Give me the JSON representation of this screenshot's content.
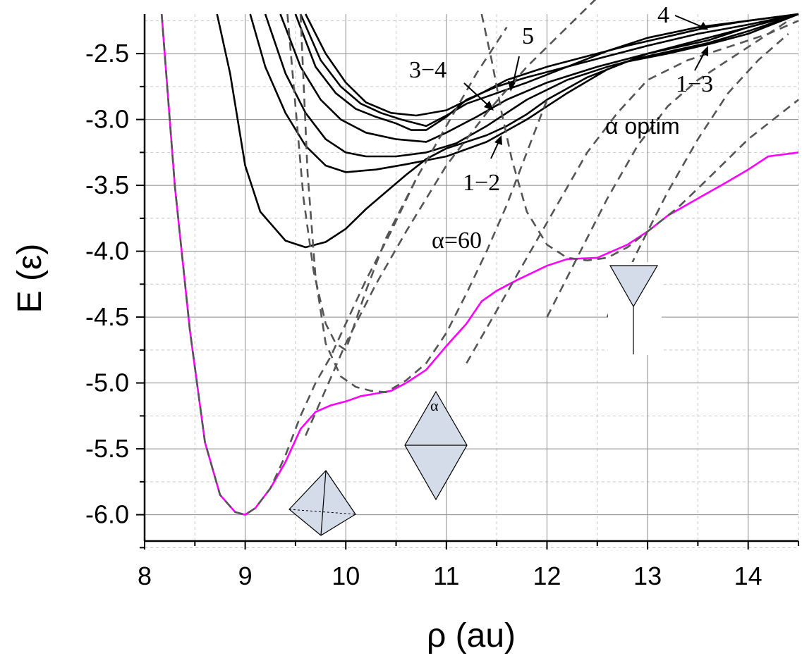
{
  "chart_data": {
    "type": "line",
    "xlabel": "ρ (au)",
    "ylabel": "E (ε)",
    "xlim": [
      8.0,
      14.5
    ],
    "ylim": [
      -6.2,
      -2.2
    ],
    "xticks": [
      8,
      9,
      10,
      11,
      12,
      13,
      14
    ],
    "xtick_labels": [
      "8",
      "9",
      "10",
      "11",
      "12",
      "13",
      "14"
    ],
    "yticks": [
      -2.5,
      -3.0,
      -3.5,
      -4.0,
      -4.5,
      -5.0,
      -5.5,
      -6.0
    ],
    "ytick_labels": [
      "-2.5",
      "-3.0",
      "-3.5",
      "-4.0",
      "-4.5",
      "-5.0",
      "-5.5",
      "-6.0"
    ],
    "grid": true,
    "annotations": {
      "a4": "4",
      "a5": "5",
      "a34": "3−4",
      "a13": "1−3",
      "a12": "1−2",
      "alpha_optim": "α optim",
      "alpha60": "α=60",
      "alpha_small": "α"
    },
    "colors": {
      "black": "#000000",
      "dashed": "#555555",
      "magenta": "#ff00ff",
      "shape_fill": "#d3dce8"
    },
    "series": [
      {
        "style": "magenta",
        "x": [
          8.17,
          8.3,
          8.45,
          8.6,
          8.75,
          8.9,
          9.0,
          9.1,
          9.25,
          9.4,
          9.55,
          9.7,
          9.85,
          10.0,
          10.15,
          10.3,
          10.45,
          10.6,
          10.8,
          11.0,
          11.2,
          11.35,
          11.5,
          11.7,
          12.0,
          12.2,
          12.5,
          12.8,
          13.0,
          13.2,
          13.5,
          13.8,
          14.0,
          14.2,
          14.5
        ],
        "y": [
          -2.2,
          -3.5,
          -4.6,
          -5.45,
          -5.85,
          -5.98,
          -6.0,
          -5.95,
          -5.8,
          -5.6,
          -5.35,
          -5.22,
          -5.17,
          -5.14,
          -5.1,
          -5.08,
          -5.06,
          -5.0,
          -4.9,
          -4.72,
          -4.55,
          -4.38,
          -4.3,
          -4.22,
          -4.11,
          -4.06,
          -4.05,
          -3.95,
          -3.85,
          -3.73,
          -3.6,
          -3.47,
          -3.38,
          -3.28,
          -3.25
        ]
      },
      {
        "style": "dashed",
        "x": [
          8.17,
          8.3,
          8.45,
          8.6,
          8.75,
          8.9,
          9.0,
          9.1,
          9.25,
          9.4,
          9.55,
          9.7,
          9.85,
          10.0,
          10.2,
          10.45,
          10.7
        ],
        "y": [
          -2.2,
          -3.5,
          -4.6,
          -5.45,
          -5.85,
          -5.98,
          -6.0,
          -5.95,
          -5.8,
          -5.55,
          -5.25,
          -5.0,
          -4.8,
          -4.55,
          -4.22,
          -3.85,
          -3.45
        ]
      },
      {
        "style": "dashed",
        "x": [
          9.55,
          9.62,
          9.7,
          9.8,
          9.95,
          10.1,
          10.25,
          10.4,
          10.6,
          10.8,
          11.0,
          11.2,
          11.4,
          11.6,
          11.8,
          12.0
        ],
        "y": [
          -2.2,
          -3.4,
          -4.2,
          -4.7,
          -4.95,
          -5.03,
          -5.06,
          -5.07,
          -4.98,
          -4.85,
          -4.62,
          -4.32,
          -4.0,
          -3.65,
          -3.25,
          -2.85
        ]
      },
      {
        "style": "dashed",
        "x": [
          9.42,
          9.5,
          9.58,
          9.68,
          9.8,
          9.9,
          10.0,
          10.2,
          10.4,
          10.7,
          11.0,
          11.3,
          11.6
        ],
        "y": [
          -2.2,
          -2.9,
          -3.6,
          -4.15,
          -4.55,
          -4.7,
          -4.75,
          -4.3,
          -3.9,
          -3.45,
          -3.05,
          -2.65,
          -2.3
        ]
      },
      {
        "style": "dashed",
        "x": [
          9.6,
          9.8,
          10.0,
          10.3,
          10.6,
          11.0,
          11.4,
          11.8,
          12.2,
          12.6
        ],
        "y": [
          -5.4,
          -5.05,
          -4.7,
          -4.25,
          -3.85,
          -3.35,
          -2.95,
          -2.6,
          -2.3,
          -2.0
        ]
      },
      {
        "style": "dashed",
        "x": [
          11.35,
          11.45,
          11.55,
          11.65,
          11.8,
          12.0,
          12.2,
          12.4,
          12.6,
          12.8,
          13.0,
          13.3,
          13.6,
          14.0,
          14.5
        ],
        "y": [
          -2.2,
          -2.55,
          -2.95,
          -3.3,
          -3.7,
          -3.95,
          -4.05,
          -4.07,
          -4.05,
          -3.97,
          -3.85,
          -3.67,
          -3.45,
          -3.15,
          -2.85
        ]
      },
      {
        "style": "dashed",
        "x": [
          11.2,
          11.5,
          11.8,
          12.1,
          12.4,
          12.7,
          13.0,
          13.4,
          13.8,
          14.2,
          14.5
        ],
        "y": [
          -4.85,
          -4.45,
          -4.05,
          -3.65,
          -3.25,
          -2.95,
          -2.7,
          -2.55,
          -2.45,
          -2.35,
          -2.25
        ]
      },
      {
        "style": "dashed",
        "x": [
          12.0,
          12.3,
          12.6,
          12.9,
          13.2,
          13.5,
          13.8,
          14.1,
          14.4
        ],
        "y": [
          -4.5,
          -4.05,
          -3.6,
          -3.2,
          -2.9,
          -2.7,
          -2.55,
          -2.4,
          -2.25
        ]
      },
      {
        "style": "dashed",
        "x": [
          12.6,
          12.9,
          13.2,
          13.5,
          13.8,
          14.1,
          14.4
        ],
        "y": [
          -4.5,
          -4.0,
          -3.55,
          -3.15,
          -2.8,
          -2.55,
          -2.35
        ]
      },
      {
        "style": "black",
        "x": [
          8.72,
          8.85,
          9.0,
          9.15,
          9.4,
          9.6,
          9.8,
          10.0,
          10.2,
          10.4,
          10.6,
          10.8,
          11.0,
          11.2,
          11.4,
          11.6,
          11.8,
          12.0,
          12.4,
          12.8,
          13.2,
          13.6,
          14.0,
          14.5
        ],
        "y": [
          -2.2,
          -2.65,
          -3.35,
          -3.7,
          -3.92,
          -3.97,
          -3.93,
          -3.83,
          -3.68,
          -3.55,
          -3.42,
          -3.3,
          -3.22,
          -3.17,
          -3.12,
          -3.05,
          -2.96,
          -2.85,
          -2.68,
          -2.56,
          -2.5,
          -2.43,
          -2.35,
          -2.2
        ]
      },
      {
        "style": "black",
        "x": [
          9.05,
          9.2,
          9.4,
          9.6,
          9.8,
          10.0,
          10.3,
          10.6,
          11.0,
          11.4,
          11.8,
          12.2,
          12.6,
          13.0,
          13.6,
          14.0,
          14.5
        ],
        "y": [
          -2.2,
          -2.6,
          -2.95,
          -3.2,
          -3.35,
          -3.4,
          -3.38,
          -3.34,
          -3.28,
          -3.17,
          -3.0,
          -2.8,
          -2.62,
          -2.5,
          -2.4,
          -2.3,
          -2.2
        ]
      },
      {
        "style": "black",
        "x": [
          9.2,
          9.4,
          9.6,
          9.8,
          10.0,
          10.2,
          10.5,
          10.8,
          11.1,
          11.4,
          11.8,
          12.2,
          12.6,
          13.0,
          13.6,
          14.0,
          14.5
        ],
        "y": [
          -2.2,
          -2.65,
          -2.95,
          -3.15,
          -3.25,
          -3.28,
          -3.28,
          -3.25,
          -3.18,
          -3.05,
          -2.85,
          -2.7,
          -2.6,
          -2.52,
          -2.42,
          -2.33,
          -2.2
        ]
      },
      {
        "style": "black",
        "x": [
          9.35,
          9.55,
          9.75,
          9.95,
          10.2,
          10.5,
          10.8,
          11.0,
          11.3,
          11.6,
          12.0,
          12.5,
          13.0,
          13.5,
          14.0,
          14.5
        ],
        "y": [
          -2.2,
          -2.6,
          -2.85,
          -3.0,
          -3.1,
          -3.15,
          -3.17,
          -3.1,
          -2.98,
          -2.85,
          -2.72,
          -2.6,
          -2.5,
          -2.4,
          -2.3,
          -2.2
        ]
      },
      {
        "style": "black",
        "x": [
          9.5,
          9.7,
          9.9,
          10.1,
          10.3,
          10.5,
          10.65,
          10.8,
          11.0,
          11.2,
          11.5,
          11.8,
          12.2,
          12.6,
          13.0,
          13.5,
          14.0,
          14.5
        ],
        "y": [
          -2.2,
          -2.6,
          -2.8,
          -2.92,
          -2.98,
          -3.03,
          -3.08,
          -3.08,
          -2.98,
          -2.85,
          -2.75,
          -2.68,
          -2.6,
          -2.52,
          -2.44,
          -2.35,
          -2.28,
          -2.2
        ]
      },
      {
        "style": "black",
        "x": [
          9.55,
          9.75,
          9.95,
          10.15,
          10.35,
          10.55,
          10.8,
          11.0,
          11.2,
          11.5,
          11.8,
          12.2,
          12.6,
          13.0,
          13.5,
          14.0,
          14.5
        ],
        "y": [
          -2.2,
          -2.55,
          -2.75,
          -2.88,
          -2.95,
          -3.0,
          -3.05,
          -2.97,
          -2.88,
          -2.8,
          -2.72,
          -2.6,
          -2.48,
          -2.38,
          -2.3,
          -2.25,
          -2.2
        ]
      },
      {
        "style": "black",
        "x": [
          9.6,
          9.8,
          10.0,
          10.2,
          10.45,
          10.7,
          11.0,
          11.3,
          11.6,
          12.0,
          12.4,
          12.8,
          13.2,
          13.6,
          14.0,
          14.5
        ],
        "y": [
          -2.2,
          -2.5,
          -2.72,
          -2.87,
          -2.95,
          -2.97,
          -2.93,
          -2.82,
          -2.7,
          -2.6,
          -2.52,
          -2.44,
          -2.37,
          -2.3,
          -2.25,
          -2.2
        ]
      }
    ]
  }
}
